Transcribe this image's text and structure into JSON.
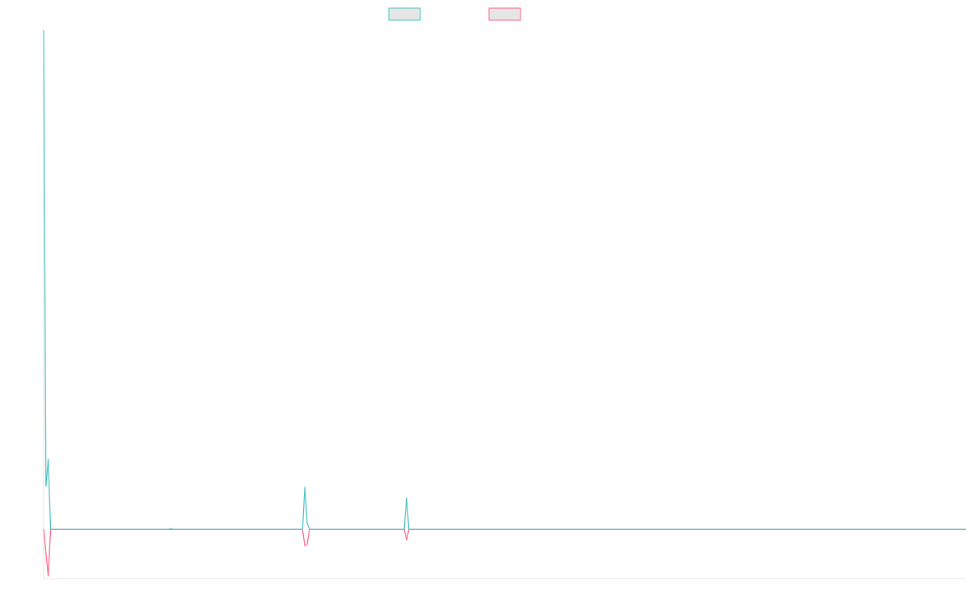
{
  "chart_data": {
    "type": "line",
    "title": "",
    "xlabel": "",
    "ylabel": "",
    "grid": false,
    "legend": "top-center",
    "x_count": 400,
    "ylim": [
      -1.15,
      11.7
    ],
    "series": [
      {
        "name": "",
        "color": "#4bc0c0",
        "legend_fill": "#e6e6e6",
        "points": [
          [
            0,
            11.7
          ],
          [
            1,
            1.0
          ],
          [
            2,
            1.65
          ],
          [
            3,
            0
          ],
          [
            4,
            0
          ],
          [
            54,
            0
          ],
          [
            55,
            0.02
          ],
          [
            56,
            0
          ],
          [
            112,
            0
          ],
          [
            113,
            1.0
          ],
          [
            114,
            0.15
          ],
          [
            115,
            0
          ],
          [
            156,
            0
          ],
          [
            157,
            0.75
          ],
          [
            158,
            0
          ],
          [
            399,
            0
          ]
        ]
      },
      {
        "name": "",
        "color": "#ff6384",
        "legend_fill": "#e6e6e6",
        "points": [
          [
            0,
            0
          ],
          [
            1,
            -0.55
          ],
          [
            2,
            -1.1
          ],
          [
            3,
            0
          ],
          [
            112,
            0
          ],
          [
            113,
            -0.38
          ],
          [
            114,
            -0.35
          ],
          [
            115,
            0
          ],
          [
            156,
            0
          ],
          [
            157,
            -0.25
          ],
          [
            158,
            0
          ],
          [
            399,
            0
          ]
        ]
      }
    ]
  }
}
